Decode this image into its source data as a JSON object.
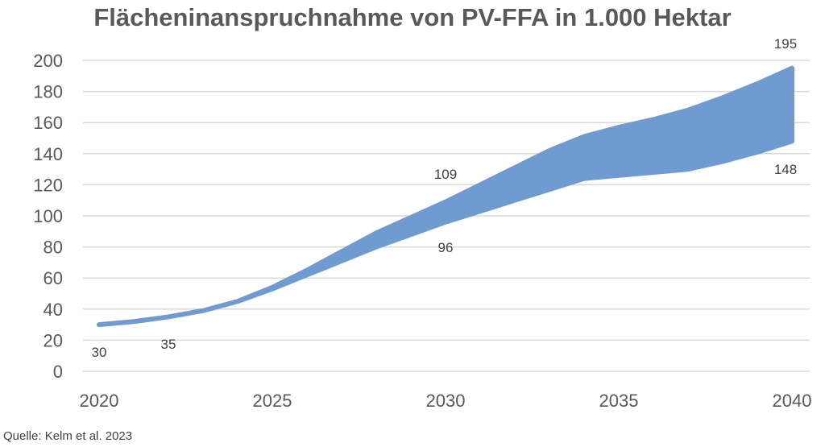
{
  "chart_data": {
    "type": "area",
    "title": "Flächeninanspruchnahme von PV-FFA in 1.000 Hektar",
    "xlabel": "",
    "ylabel": "",
    "xlim": [
      2020,
      2040
    ],
    "ylim": [
      0,
      200
    ],
    "x_ticks": [
      "2020",
      "2025",
      "2030",
      "2035",
      "2040"
    ],
    "y_ticks": [
      "0",
      "20",
      "40",
      "60",
      "80",
      "100",
      "120",
      "140",
      "160",
      "180",
      "200"
    ],
    "grid": true,
    "color": "#6f9bd1",
    "x": [
      2020,
      2021,
      2022,
      2023,
      2024,
      2025,
      2026,
      2027,
      2028,
      2029,
      2030,
      2031,
      2032,
      2033,
      2034,
      2035,
      2036,
      2037,
      2038,
      2039,
      2040
    ],
    "series": [
      {
        "values": [
          30,
          32,
          35,
          39,
          45,
          54,
          65,
          77,
          89,
          99,
          109,
          120,
          131,
          142,
          151,
          157,
          162,
          168,
          176,
          185,
          195
        ]
      },
      {
        "values": [
          30,
          32,
          35,
          39,
          45,
          53,
          62,
          71,
          80,
          88,
          96,
          103,
          110,
          117,
          124,
          126,
          128,
          130,
          135,
          141,
          148
        ]
      }
    ],
    "data_labels": [
      {
        "x": 2020,
        "text": "30"
      },
      {
        "x": 2022,
        "text": "35"
      },
      {
        "x": 2030,
        "text": "109"
      },
      {
        "x": 2030,
        "text": "96"
      },
      {
        "x": 2040,
        "text": "195"
      },
      {
        "x": 2040,
        "text": "148"
      }
    ]
  },
  "source": "Quelle: Kelm et al. 2023"
}
